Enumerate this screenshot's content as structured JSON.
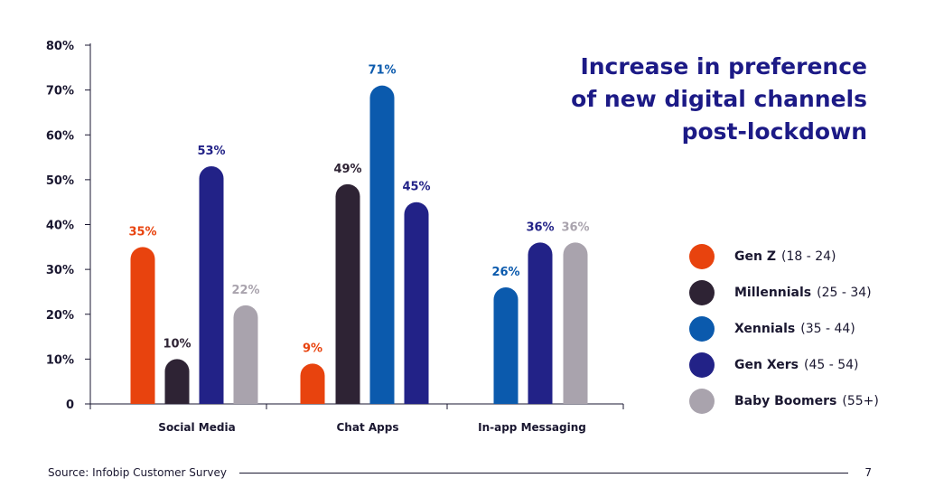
{
  "chart_data": {
    "type": "bar",
    "title": [
      "Increase in preference",
      "of new digital channels",
      "post-lockdown"
    ],
    "categories": [
      "Social Media",
      "Chat Apps",
      "In-app Messaging"
    ],
    "y_ticks": [
      "0",
      "10%",
      "20%",
      "30%",
      "40%",
      "50%",
      "60%",
      "70%",
      "80%"
    ],
    "ylim": [
      0,
      80
    ],
    "series": [
      {
        "name": "Gen Z",
        "range": "(18 - 24)",
        "color": "#e8430e",
        "values": [
          35,
          9,
          null
        ],
        "labels": [
          "35%",
          "9%",
          ""
        ]
      },
      {
        "name": "Millennials",
        "range": "(25 - 34)",
        "color": "#2e2334",
        "values": [
          10,
          49,
          null
        ],
        "labels": [
          "10%",
          "49%",
          ""
        ]
      },
      {
        "name": "Xennials",
        "range": "(35 - 44)",
        "color": "#0b5aad",
        "values": [
          null,
          71,
          26
        ],
        "labels": [
          "",
          "71%",
          "26%"
        ]
      },
      {
        "name": "Gen Xers",
        "range": "(45 - 54)",
        "color": "#222287",
        "values": [
          53,
          45,
          36
        ],
        "labels": [
          "53%",
          "45%",
          "36%"
        ]
      },
      {
        "name": "Baby Boomers",
        "range": "(55+)",
        "color": "#a9a3ad",
        "values": [
          22,
          null,
          36
        ],
        "labels": [
          "22%",
          "",
          "36%"
        ]
      }
    ],
    "legend_position": "right"
  },
  "footer": {
    "source": "Source: Infobip Customer Survey",
    "page_number": "7"
  }
}
